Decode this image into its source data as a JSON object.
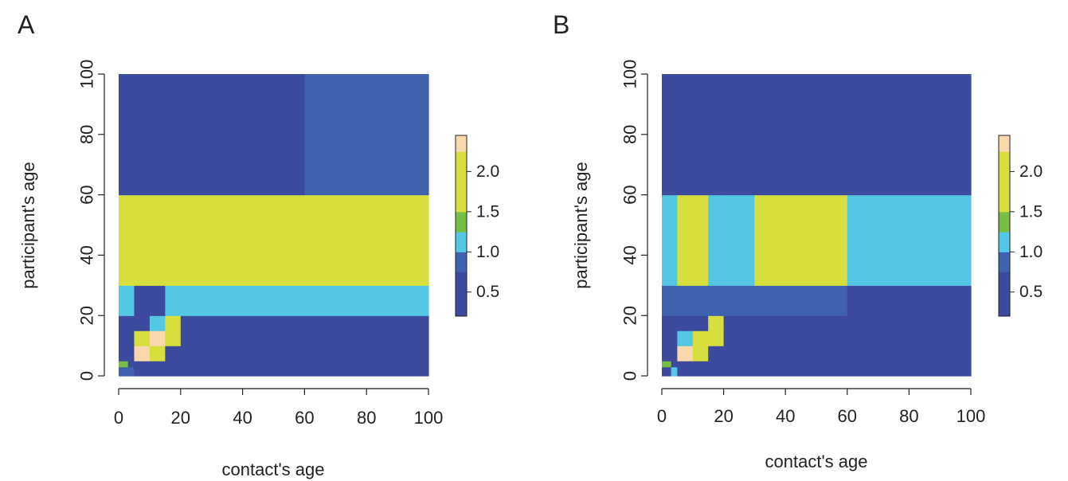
{
  "colors": {
    "c1": "#3d4a9e",
    "c2": "#3f61ae",
    "c3": "#54c7e4",
    "c4": "#76bf44",
    "c5": "#d6df3e",
    "c6": "#f7d9ad",
    "axis": "#222222"
  },
  "chart_data": [
    {
      "type": "heatmap",
      "panel_label": "A",
      "xlabel": "contact's age",
      "ylabel": "participant's age",
      "xlim": [
        0,
        100
      ],
      "ylim": [
        0,
        100
      ],
      "x_ticks": [
        "0",
        "20",
        "40",
        "60",
        "80",
        "100"
      ],
      "y_ticks": [
        "0",
        "20",
        "40",
        "60",
        "80",
        "100"
      ],
      "legend": {
        "ticks": [
          "0.5",
          "1.0",
          "1.5",
          "2.0"
        ],
        "range": [
          0.2,
          2.45
        ]
      },
      "x_breaks": [
        0,
        3,
        5,
        10,
        15,
        20,
        30,
        60,
        100
      ],
      "y_breaks": [
        0,
        3,
        5,
        10,
        15,
        20,
        30,
        60,
        100
      ],
      "values": [
        [
          0.85,
          0.9,
          0.6,
          0.6,
          0.6,
          0.6,
          0.6,
          0.7
        ],
        [
          1.4,
          0.6,
          0.6,
          0.6,
          0.6,
          0.6,
          0.6,
          0.6
        ],
        [
          0.7,
          0.5,
          2.35,
          1.8,
          0.6,
          0.5,
          0.5,
          0.45
        ],
        [
          0.6,
          0.5,
          1.6,
          2.35,
          1.8,
          0.6,
          0.55,
          0.55
        ],
        [
          0.6,
          0.5,
          0.5,
          1.2,
          2.0,
          0.7,
          0.6,
          0.6
        ],
        [
          1.2,
          1.2,
          0.7,
          0.7,
          1.2,
          1.2,
          1.2,
          1.2
        ],
        [
          1.6,
          1.9,
          1.9,
          2.05,
          2.05,
          1.9,
          1.9,
          1.9
        ],
        [
          0.55,
          0.55,
          0.5,
          0.55,
          0.5,
          0.55,
          0.55,
          0.75
        ]
      ]
    },
    {
      "type": "heatmap",
      "panel_label": "B",
      "xlabel": "contact's age",
      "ylabel": "participant's age",
      "xlim": [
        0,
        100
      ],
      "ylim": [
        0,
        100
      ],
      "x_ticks": [
        "0",
        "20",
        "40",
        "60",
        "80",
        "100"
      ],
      "y_ticks": [
        "0",
        "20",
        "40",
        "60",
        "80",
        "100"
      ],
      "legend": {
        "ticks": [
          "0.5",
          "1.0",
          "1.5",
          "2.0"
        ],
        "range": [
          0.2,
          2.45
        ]
      },
      "x_breaks": [
        0,
        3,
        5,
        10,
        15,
        20,
        30,
        60,
        100
      ],
      "y_breaks": [
        0,
        3,
        5,
        10,
        15,
        20,
        30,
        60,
        100
      ],
      "values": [
        [
          0.7,
          1.2,
          0.7,
          0.7,
          0.7,
          0.7,
          0.7,
          0.7
        ],
        [
          1.4,
          0.6,
          0.6,
          0.6,
          0.6,
          0.6,
          0.6,
          0.6
        ],
        [
          0.6,
          0.5,
          2.35,
          1.8,
          0.6,
          0.55,
          0.5,
          0.5
        ],
        [
          0.55,
          0.5,
          1.2,
          1.8,
          1.8,
          0.5,
          0.5,
          0.5
        ],
        [
          0.55,
          0.5,
          0.5,
          0.5,
          2.0,
          0.5,
          0.5,
          0.5
        ],
        [
          0.75,
          0.75,
          0.75,
          0.75,
          0.75,
          0.75,
          0.75,
          0.6
        ],
        [
          1.2,
          1.2,
          1.6,
          1.6,
          1.2,
          1.2,
          1.6,
          1.2
        ],
        [
          0.55,
          0.5,
          0.5,
          0.5,
          0.5,
          0.5,
          0.5,
          0.6
        ]
      ]
    }
  ]
}
